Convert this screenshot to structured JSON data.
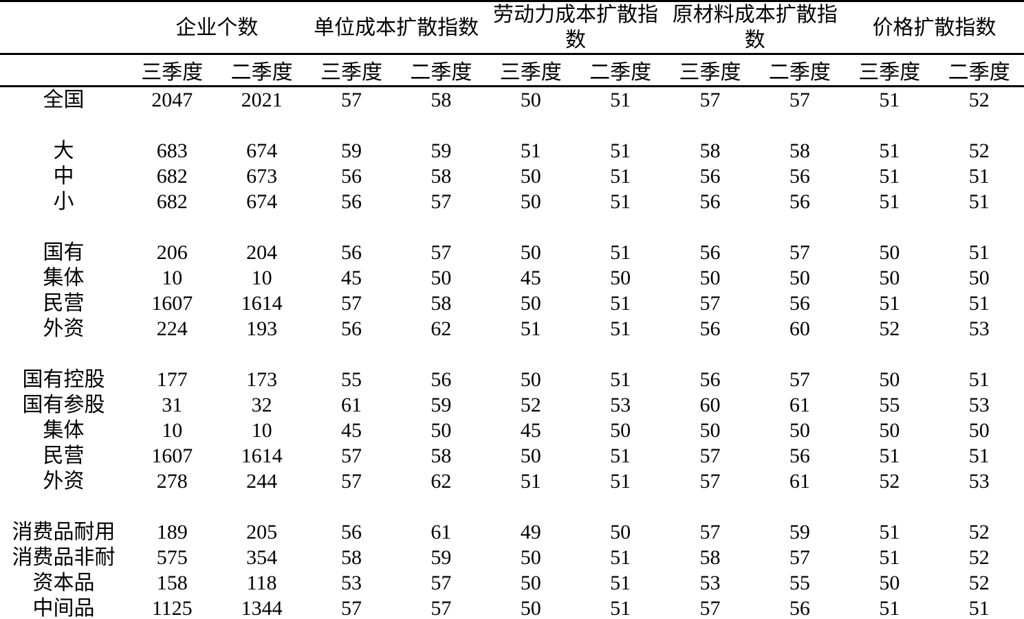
{
  "table": {
    "col_groups": [
      {
        "label": "企业个数"
      },
      {
        "label": "单位成本扩散指数"
      },
      {
        "label": "劳动力成本扩散指数"
      },
      {
        "label": "原材料成本扩散指数"
      },
      {
        "label": "价格扩散指数"
      }
    ],
    "quarter_headers": [
      "三季度",
      "二季度"
    ],
    "rows": [
      {
        "label": "全国",
        "values": [
          2047,
          2021,
          57,
          58,
          50,
          51,
          57,
          57,
          51,
          52
        ]
      },
      {
        "label": "",
        "values": []
      },
      {
        "label": "大",
        "values": [
          683,
          674,
          59,
          59,
          51,
          51,
          58,
          58,
          51,
          52
        ]
      },
      {
        "label": "中",
        "values": [
          682,
          673,
          56,
          58,
          50,
          51,
          56,
          56,
          51,
          51
        ]
      },
      {
        "label": "小",
        "values": [
          682,
          674,
          56,
          57,
          50,
          51,
          56,
          56,
          51,
          51
        ]
      },
      {
        "label": "",
        "values": []
      },
      {
        "label": "国有",
        "values": [
          206,
          204,
          56,
          57,
          50,
          51,
          56,
          57,
          50,
          51
        ]
      },
      {
        "label": "集体",
        "values": [
          10,
          10,
          45,
          50,
          45,
          50,
          50,
          50,
          50,
          50
        ]
      },
      {
        "label": "民营",
        "values": [
          1607,
          1614,
          57,
          58,
          50,
          51,
          57,
          56,
          51,
          51
        ]
      },
      {
        "label": "外资",
        "values": [
          224,
          193,
          56,
          62,
          51,
          51,
          56,
          60,
          52,
          53
        ]
      },
      {
        "label": "",
        "values": []
      },
      {
        "label": "国有控股",
        "values": [
          177,
          173,
          55,
          56,
          50,
          51,
          56,
          57,
          50,
          51
        ]
      },
      {
        "label": "国有参股",
        "values": [
          31,
          32,
          61,
          59,
          52,
          53,
          60,
          61,
          55,
          53
        ]
      },
      {
        "label": "集体",
        "values": [
          10,
          10,
          45,
          50,
          45,
          50,
          50,
          50,
          50,
          50
        ]
      },
      {
        "label": "民营",
        "values": [
          1607,
          1614,
          57,
          58,
          50,
          51,
          57,
          56,
          51,
          51
        ]
      },
      {
        "label": "外资",
        "values": [
          278,
          244,
          57,
          62,
          51,
          51,
          57,
          61,
          52,
          53
        ]
      },
      {
        "label": "",
        "values": []
      },
      {
        "label": "消费品耐用",
        "values": [
          189,
          205,
          56,
          61,
          49,
          50,
          57,
          59,
          51,
          52
        ]
      },
      {
        "label": "消费品非耐",
        "values": [
          575,
          354,
          58,
          59,
          50,
          51,
          58,
          57,
          51,
          52
        ]
      },
      {
        "label": "资本品",
        "values": [
          158,
          118,
          53,
          57,
          50,
          51,
          53,
          55,
          50,
          52
        ]
      },
      {
        "label": "中间品",
        "values": [
          1125,
          1344,
          57,
          57,
          50,
          51,
          57,
          56,
          51,
          51
        ]
      }
    ]
  }
}
